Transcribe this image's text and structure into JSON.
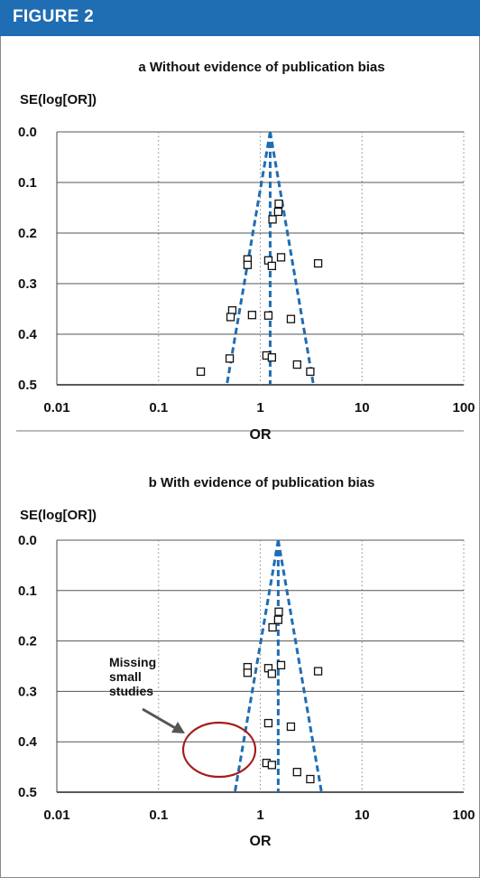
{
  "figure_label": "FIGURE 2",
  "colors": {
    "header": "#1f6db2",
    "funnel": "#1f6db2",
    "circle": "#a51c1c",
    "marker": "#111111"
  },
  "chart_data": [
    {
      "type": "scatter",
      "title": "a Without evidence of publication bias",
      "xlabel": "OR",
      "ylabel": "SE(log[OR])",
      "xscale": "log",
      "xlim": [
        0.01,
        100
      ],
      "ylim": [
        0.5,
        0.0
      ],
      "y_inverted": true,
      "xticks": [
        "0.01",
        "0.1",
        "1",
        "10",
        "100"
      ],
      "yticks": [
        "0.0",
        "0.1",
        "0.2",
        "0.3",
        "0.4",
        "0.5"
      ],
      "grid": "vertical dotted at decades, horizontal solid at y ticks",
      "funnel": {
        "center_or": 1.25,
        "apex_se": 0.0,
        "lines": "dashed"
      },
      "points": [
        {
          "x": 1.52,
          "y": 0.142
        },
        {
          "x": 1.5,
          "y": 0.158
        },
        {
          "x": 1.32,
          "y": 0.173
        },
        {
          "x": 0.75,
          "y": 0.252
        },
        {
          "x": 0.75,
          "y": 0.263
        },
        {
          "x": 1.2,
          "y": 0.254
        },
        {
          "x": 1.3,
          "y": 0.265
        },
        {
          "x": 1.6,
          "y": 0.248
        },
        {
          "x": 3.7,
          "y": 0.26
        },
        {
          "x": 0.53,
          "y": 0.353
        },
        {
          "x": 0.51,
          "y": 0.366
        },
        {
          "x": 0.83,
          "y": 0.362
        },
        {
          "x": 1.2,
          "y": 0.363
        },
        {
          "x": 2.0,
          "y": 0.37
        },
        {
          "x": 0.5,
          "y": 0.448
        },
        {
          "x": 1.15,
          "y": 0.442
        },
        {
          "x": 1.3,
          "y": 0.446
        },
        {
          "x": 2.3,
          "y": 0.46
        },
        {
          "x": 0.26,
          "y": 0.474
        },
        {
          "x": 3.1,
          "y": 0.474
        }
      ]
    },
    {
      "type": "scatter",
      "title": "b With evidence of publication bias",
      "xlabel": "OR",
      "ylabel": "SE(log[OR])",
      "xscale": "log",
      "xlim": [
        0.01,
        100
      ],
      "ylim": [
        0.5,
        0.0
      ],
      "y_inverted": true,
      "xticks": [
        "0.01",
        "0.1",
        "1",
        "10",
        "100"
      ],
      "yticks": [
        "0.0",
        "0.1",
        "0.2",
        "0.3",
        "0.4",
        "0.5"
      ],
      "grid": "vertical dotted at decades, horizontal solid at y ticks",
      "funnel": {
        "center_or": 1.5,
        "apex_se": 0.0,
        "lines": "dashed"
      },
      "annotation": {
        "text": [
          "Missing",
          "small",
          "studies"
        ],
        "target": "missing small studies circle"
      },
      "points": [
        {
          "x": 1.52,
          "y": 0.142
        },
        {
          "x": 1.5,
          "y": 0.158
        },
        {
          "x": 1.32,
          "y": 0.173
        },
        {
          "x": 0.75,
          "y": 0.252
        },
        {
          "x": 0.75,
          "y": 0.263
        },
        {
          "x": 1.2,
          "y": 0.254
        },
        {
          "x": 1.3,
          "y": 0.265
        },
        {
          "x": 1.6,
          "y": 0.248
        },
        {
          "x": 3.7,
          "y": 0.26
        },
        {
          "x": 1.2,
          "y": 0.363
        },
        {
          "x": 2.0,
          "y": 0.37
        },
        {
          "x": 1.15,
          "y": 0.442
        },
        {
          "x": 1.3,
          "y": 0.446
        },
        {
          "x": 2.3,
          "y": 0.46
        },
        {
          "x": 3.1,
          "y": 0.474
        }
      ]
    }
  ]
}
